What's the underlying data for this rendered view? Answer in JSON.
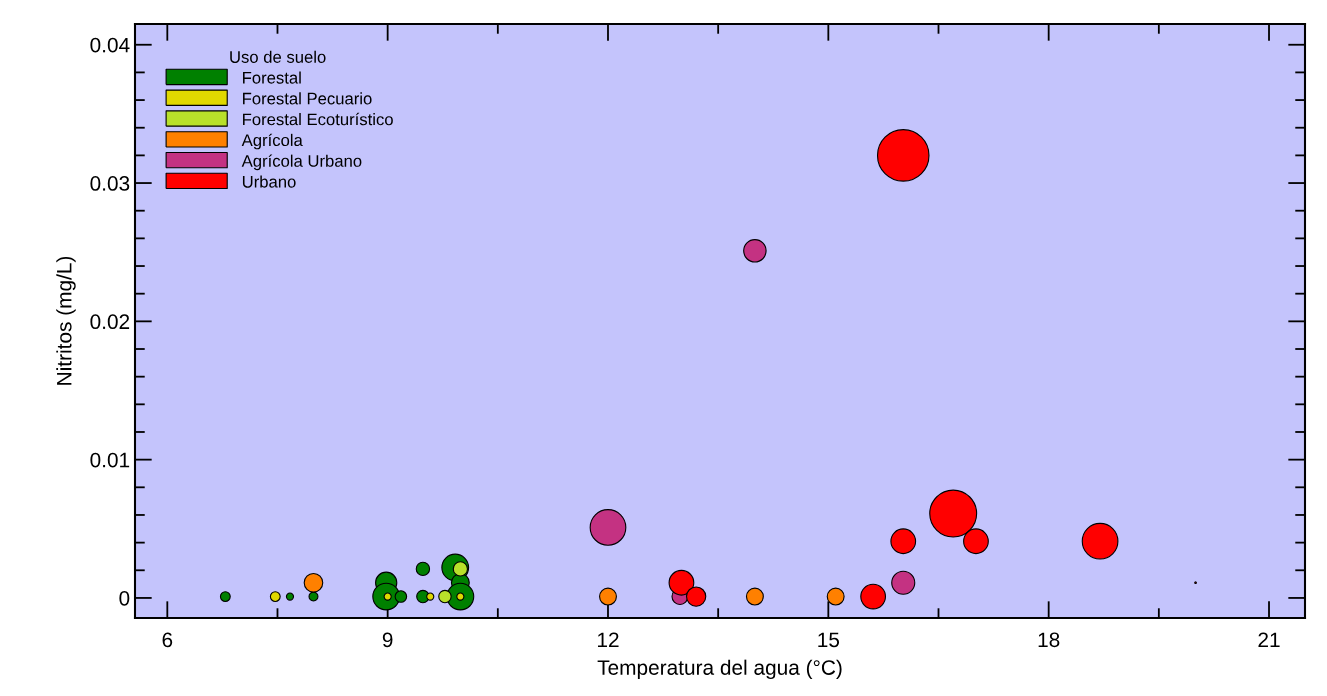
{
  "chart_data": {
    "type": "bubble",
    "xlabel": "Temperatura del agua (°C)",
    "ylabel": "Nitritos (mg/L)",
    "legend_title": "Uso de suelo",
    "legend": "top left",
    "grid": false,
    "xlim": [
      5.56,
      21.49
    ],
    "ylim": [
      -0.00145,
      0.0415
    ],
    "xticks": [
      6,
      9,
      12,
      15,
      18,
      21
    ],
    "yticks": [
      0,
      0.01,
      0.02,
      0.03,
      0.04
    ],
    "series": [
      {
        "name": "Forestal",
        "color": "#008000",
        "x": [
          6.79,
          7.67,
          7.99,
          8.98,
          8.98,
          9.18,
          9.48,
          9.48,
          9.92,
          9.99,
          9.99
        ],
        "values": [
          0.0001,
          0.0001,
          0.0001,
          0.0011,
          0.0001,
          0.0001,
          0.0021,
          0.0001,
          0.0022,
          0.0011,
          0.0001
        ],
        "sizes": [
          0.036,
          0.019,
          0.03,
          0.17,
          0.27,
          0.05,
          0.067,
          0.058,
          0.27,
          0.12,
          0.27
        ]
      },
      {
        "name": "Forestal Pecuario",
        "color": "#e0d800",
        "x": [
          7.47,
          9.0,
          9.58,
          9.99
        ],
        "values": [
          0.0001,
          0.0001,
          0.0001,
          0.0001
        ],
        "sizes": [
          0.036,
          0.019,
          0.019,
          0.019
        ]
      },
      {
        "name": "Forestal Ecoturístico",
        "color": "#b8e02a",
        "x": [
          9.78,
          9.99
        ],
        "values": [
          0.0001,
          0.0021
        ],
        "sizes": [
          0.058,
          0.076
        ]
      },
      {
        "name": "Agrícola",
        "color": "#ff8000",
        "x": [
          7.99,
          12.0,
          14.0,
          15.1
        ],
        "values": [
          0.0011,
          0.0001,
          0.0001,
          0.0001
        ],
        "sizes": [
          0.13,
          0.107,
          0.107,
          0.107
        ]
      },
      {
        "name": "Agrícola Urbano",
        "color": "#c43282",
        "x": [
          12.0,
          12.98,
          14.0,
          16.02
        ],
        "values": [
          0.0051,
          0.0001,
          0.0251,
          0.0011
        ],
        "sizes": [
          0.48,
          0.096,
          0.19,
          0.2
        ]
      },
      {
        "name": "Urbano",
        "color": "#ff0000",
        "x": [
          13.0,
          13.2,
          15.61,
          16.02,
          16.7,
          17.01,
          18.7,
          16.02,
          20.0
        ],
        "values": [
          0.0011,
          0.0001,
          0.0001,
          0.0041,
          0.0061,
          0.0041,
          0.0041,
          0.032,
          0.0011
        ],
        "sizes": [
          0.23,
          0.14,
          0.23,
          0.23,
          0.83,
          0.23,
          0.48,
          1,
          0.001
        ]
      }
    ]
  }
}
